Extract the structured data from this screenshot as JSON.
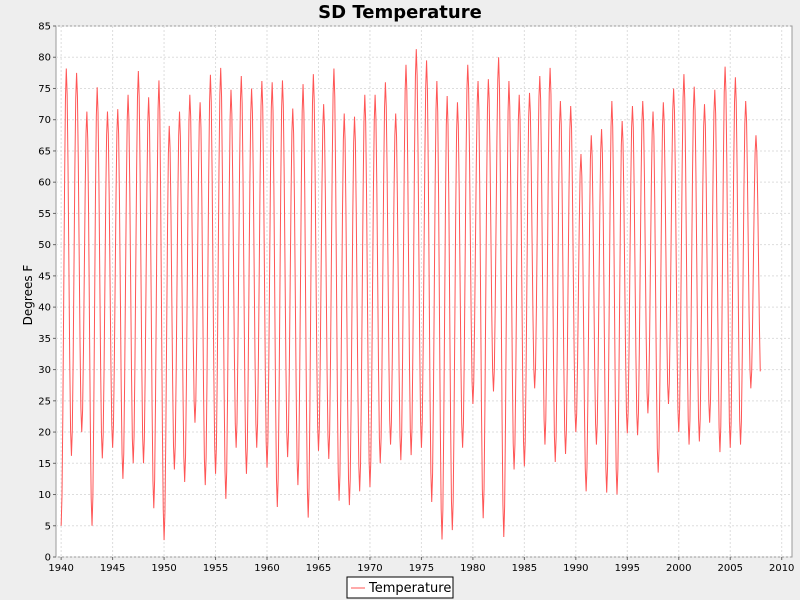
{
  "chart_data": {
    "type": "line",
    "title": "SD Temperature",
    "xlabel": "",
    "ylabel": "Degrees F",
    "xlim": [
      1939.5,
      2011
    ],
    "ylim": [
      0,
      85
    ],
    "xticks": [
      "1940",
      "1945",
      "1950",
      "1955",
      "1960",
      "1965",
      "1970",
      "1975",
      "1980",
      "1985",
      "1990",
      "1995",
      "2000",
      "2005",
      "2010"
    ],
    "yticks": [
      "0",
      "5",
      "10",
      "15",
      "20",
      "25",
      "30",
      "35",
      "40",
      "45",
      "50",
      "55",
      "60",
      "65",
      "70",
      "75",
      "80",
      "85"
    ],
    "grid": true,
    "legend_position": "bottom",
    "series": [
      {
        "name": "Temperature",
        "color": "#ff5555",
        "peaks": [
          78.2,
          77.5,
          71.3,
          75.2,
          71.3,
          71.7,
          74.0,
          77.8,
          73.6,
          76.3,
          69.0,
          71.3,
          74.0,
          72.8,
          77.2,
          78.3,
          74.8,
          77.0,
          75.0,
          76.2,
          76.0,
          76.3,
          71.8,
          75.7,
          77.3,
          72.5,
          78.2,
          71.0,
          70.5,
          74.0,
          74.0,
          76.0,
          71.0,
          78.8,
          81.3,
          79.5,
          76.2,
          73.8,
          72.8,
          78.8,
          76.2,
          76.5,
          80.0,
          76.2,
          74.0,
          74.3,
          77.0,
          78.3,
          73.0,
          72.2,
          64.5,
          67.5,
          68.5,
          73.0,
          69.8,
          72.2,
          73.0,
          71.3,
          72.8,
          75.0,
          77.3,
          75.3,
          72.5,
          74.8,
          78.5,
          76.8,
          73.0,
          67.5
        ],
        "troughs": [
          5.0,
          16.2,
          20.0,
          5.0,
          15.8,
          17.5,
          12.5,
          15.0,
          15.0,
          7.8,
          2.7,
          14.0,
          12.0,
          21.5,
          11.5,
          13.3,
          9.3,
          17.5,
          13.3,
          17.5,
          14.3,
          8.0,
          16.0,
          11.5,
          6.3,
          17.0,
          15.7,
          9.0,
          8.3,
          10.5,
          11.2,
          15.0,
          18.0,
          15.5,
          16.3,
          17.5,
          8.8,
          2.8,
          4.3,
          17.5,
          24.5,
          6.2,
          26.5,
          3.2,
          14.0,
          14.5,
          27.0,
          18.0,
          15.2,
          16.5,
          20.0,
          10.5,
          18.0,
          10.3,
          10.0,
          19.8,
          19.5,
          23.0,
          13.5,
          24.5,
          20.0,
          18.0,
          18.5,
          21.5,
          16.8,
          17.5,
          18.0,
          27.0
        ]
      }
    ]
  }
}
